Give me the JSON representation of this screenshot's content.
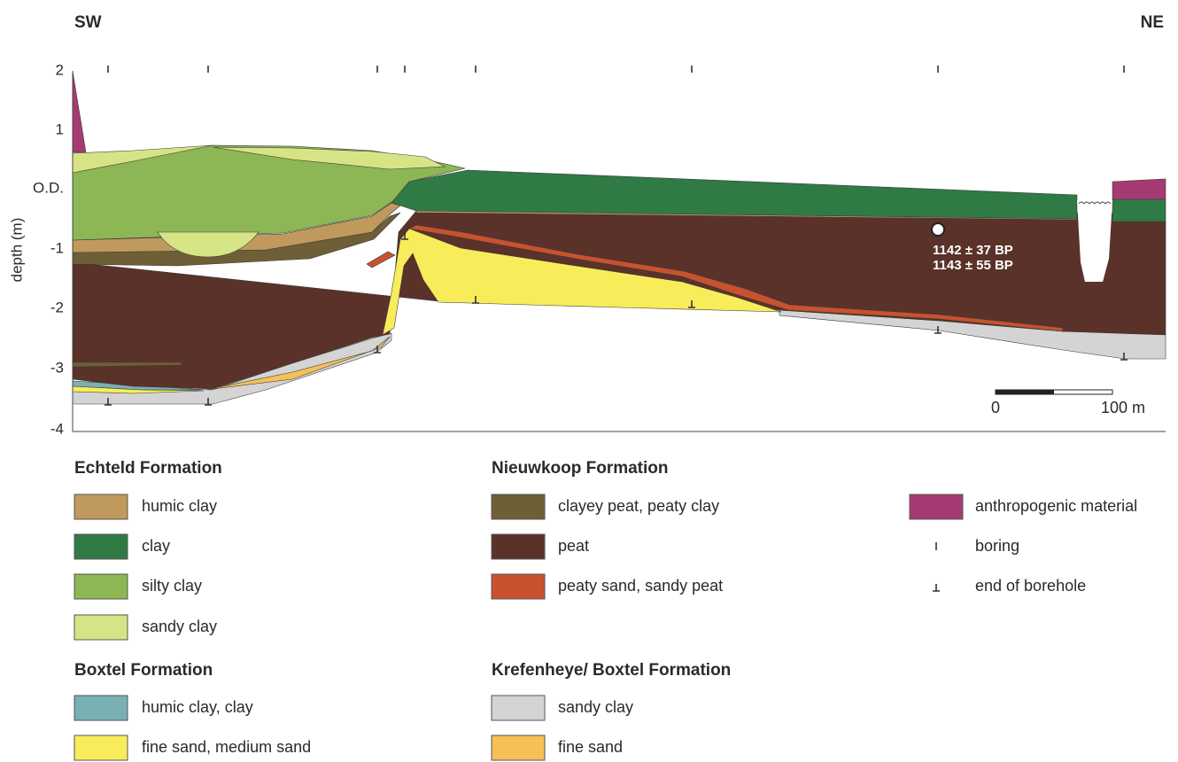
{
  "header": {
    "left": "SW",
    "right": "NE"
  },
  "axis": {
    "label": "depth (m)",
    "ticks": [
      "2",
      "1",
      "O.D.",
      "-1",
      "-2",
      "-3",
      "-4"
    ]
  },
  "annotations": {
    "dates": [
      "1142 ± 37 BP",
      "1143 ± 55 BP"
    ],
    "scale": {
      "start": "0",
      "end": "100 m"
    }
  },
  "legend": {
    "groups": [
      {
        "title": "Echteld Formation",
        "items": [
          "humic clay",
          "clay",
          "silty clay",
          "sandy clay"
        ]
      },
      {
        "title": "Nieuwkoop Formation",
        "items": [
          "clayey peat, peaty clay",
          "peat",
          "peaty sand, sandy peat"
        ]
      },
      {
        "items": [
          "anthropogenic material",
          "boring",
          "end of borehole"
        ]
      },
      {
        "title": "Boxtel Formation",
        "items": [
          "humic clay, clay",
          "fine sand, medium sand"
        ]
      },
      {
        "title": "Krefenheye/ Boxtel Formation",
        "items": [
          "sandy clay",
          "fine sand"
        ]
      }
    ]
  }
}
